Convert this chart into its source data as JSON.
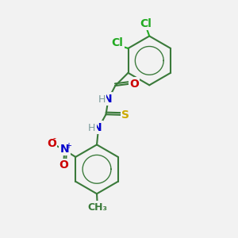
{
  "bg_color": "#f2f2f2",
  "bond_color": "#3a7a3a",
  "bond_width": 1.5,
  "atom_colors": {
    "H": "#7a9a9a",
    "N": "#0000cc",
    "O": "#cc0000",
    "S": "#ccaa00",
    "Cl": "#22aa22"
  },
  "font_size": 9,
  "fig_size": [
    3.0,
    3.0
  ],
  "dpi": 100,
  "xlim": [
    0,
    10
  ],
  "ylim": [
    0,
    10
  ]
}
